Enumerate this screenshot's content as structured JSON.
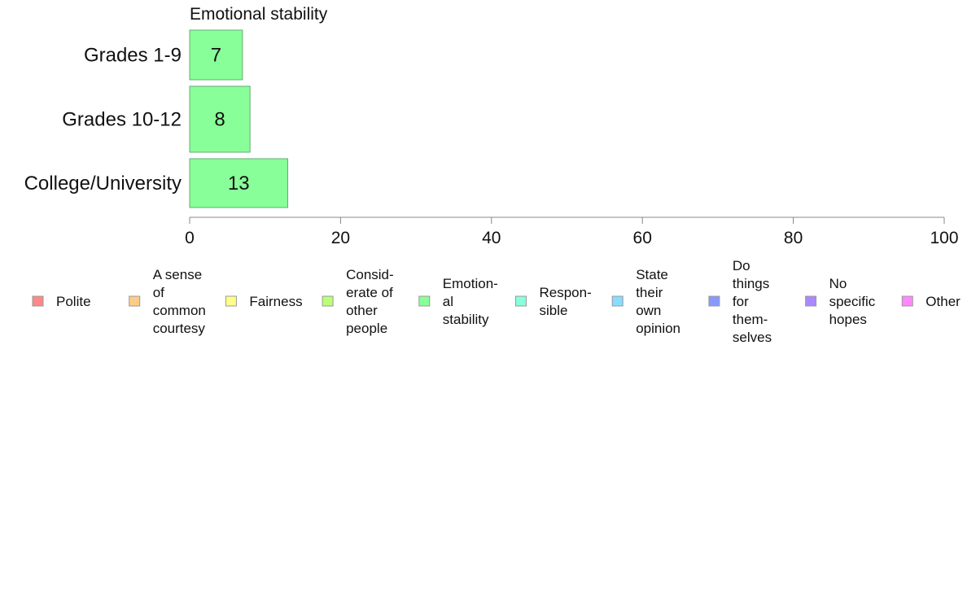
{
  "chart_data": {
    "type": "bar",
    "orientation": "horizontal",
    "title": "Emotional stability",
    "categories": [
      "Grades 1-9",
      "Grades 10-12",
      "College/University"
    ],
    "series": [
      {
        "name": "Emotional stability",
        "values": [
          7,
          8,
          13
        ],
        "color": "#88ff99"
      }
    ],
    "xlim": [
      0,
      100
    ],
    "x_ticks": [
      "0",
      "20",
      "40",
      "60",
      "80",
      "100"
    ],
    "grid": false,
    "legend_position": "bottom",
    "legend": [
      {
        "lines": [
          "Polite"
        ],
        "color": "#ff8888"
      },
      {
        "lines": [
          "A sense",
          "of",
          "common",
          "courtesy"
        ],
        "color": "#ffcc88"
      },
      {
        "lines": [
          "Fairness"
        ],
        "color": "#ffff88"
      },
      {
        "lines": [
          "Consid-",
          "erate of",
          "other",
          "people"
        ],
        "color": "#bbff77"
      },
      {
        "lines": [
          "Emotion-",
          "al",
          "stability"
        ],
        "color": "#88ff99"
      },
      {
        "lines": [
          "Respon-",
          "sible"
        ],
        "color": "#88ffdd"
      },
      {
        "lines": [
          "State",
          "their",
          "own",
          "opinion"
        ],
        "color": "#88ddff"
      },
      {
        "lines": [
          "Do",
          "things",
          "for",
          "them-",
          "selves"
        ],
        "color": "#8899ff"
      },
      {
        "lines": [
          "No",
          "specific",
          "hopes"
        ],
        "color": "#aa88ff"
      },
      {
        "lines": [
          "Other"
        ],
        "color": "#ff88ff"
      }
    ]
  }
}
